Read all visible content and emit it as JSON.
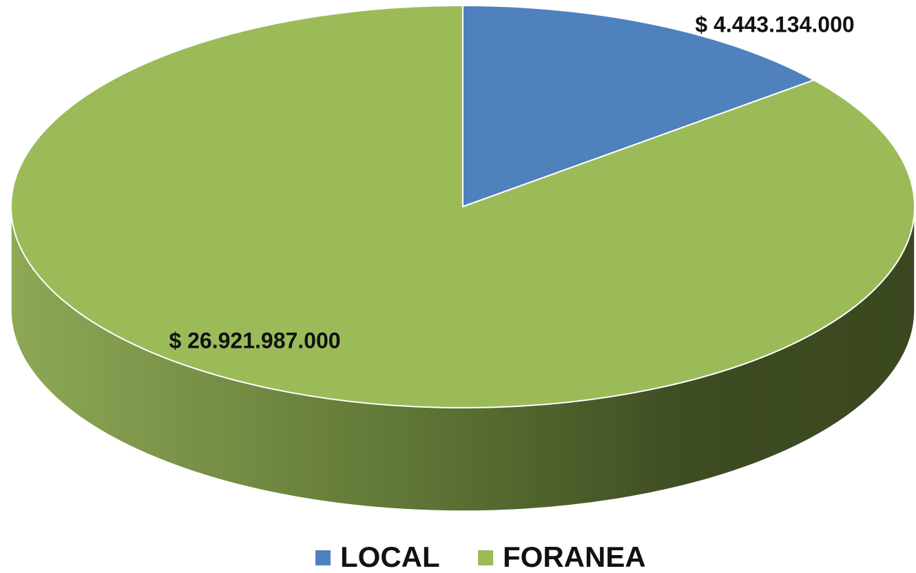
{
  "chart_data": {
    "type": "pie",
    "categories": [
      "LOCAL",
      "FORANEA"
    ],
    "values": [
      4443134000,
      26921987000
    ],
    "value_labels": [
      "$ 4.443.134.000",
      "$ 26.921.987.000"
    ],
    "colors": [
      "#4f81bd",
      "#9bbb59"
    ],
    "legend": "bottom"
  }
}
